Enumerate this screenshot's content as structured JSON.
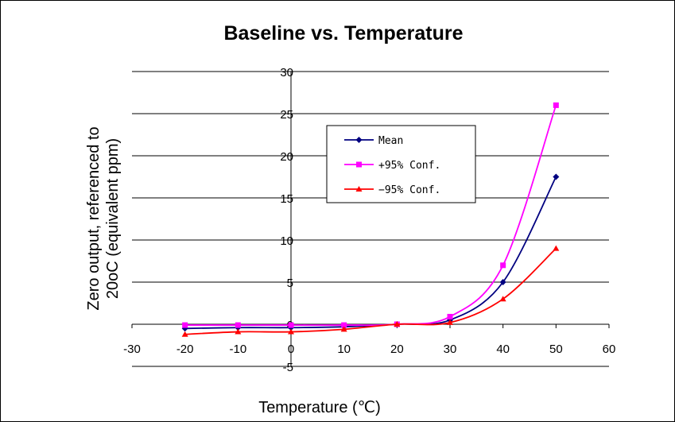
{
  "chart_data": {
    "type": "line",
    "title": "Baseline vs. Temperature",
    "xlabel": "Temperature (℃)",
    "ylabel_lines": [
      "Zero output, referenced to",
      "20oC (equivalent ppm)"
    ],
    "xlim": [
      -30,
      60
    ],
    "ylim": [
      -5,
      30
    ],
    "x_ticks": [
      -30,
      -20,
      -10,
      0,
      10,
      20,
      30,
      40,
      50,
      60
    ],
    "y_ticks": [
      -5,
      0,
      5,
      10,
      15,
      20,
      25,
      30
    ],
    "grid": "horizontal",
    "legend_position": "center",
    "x": [
      -20,
      -10,
      0,
      10,
      20,
      30,
      40,
      50
    ],
    "series": [
      {
        "name": "Mean",
        "color": "#000080",
        "marker": "diamond",
        "values": [
          -0.5,
          -0.4,
          -0.4,
          -0.3,
          0,
          0.5,
          5,
          17.5
        ]
      },
      {
        "name": "+95% Conf.",
        "color": "#ff00ff",
        "marker": "square",
        "values": [
          -0.1,
          -0.1,
          -0.1,
          -0.1,
          0,
          0.9,
          7,
          26
        ]
      },
      {
        "name": "−95% Conf.",
        "color": "#ff0000",
        "marker": "triangle",
        "values": [
          -1.2,
          -0.9,
          -0.9,
          -0.6,
          0,
          0.2,
          3,
          9
        ]
      }
    ]
  }
}
